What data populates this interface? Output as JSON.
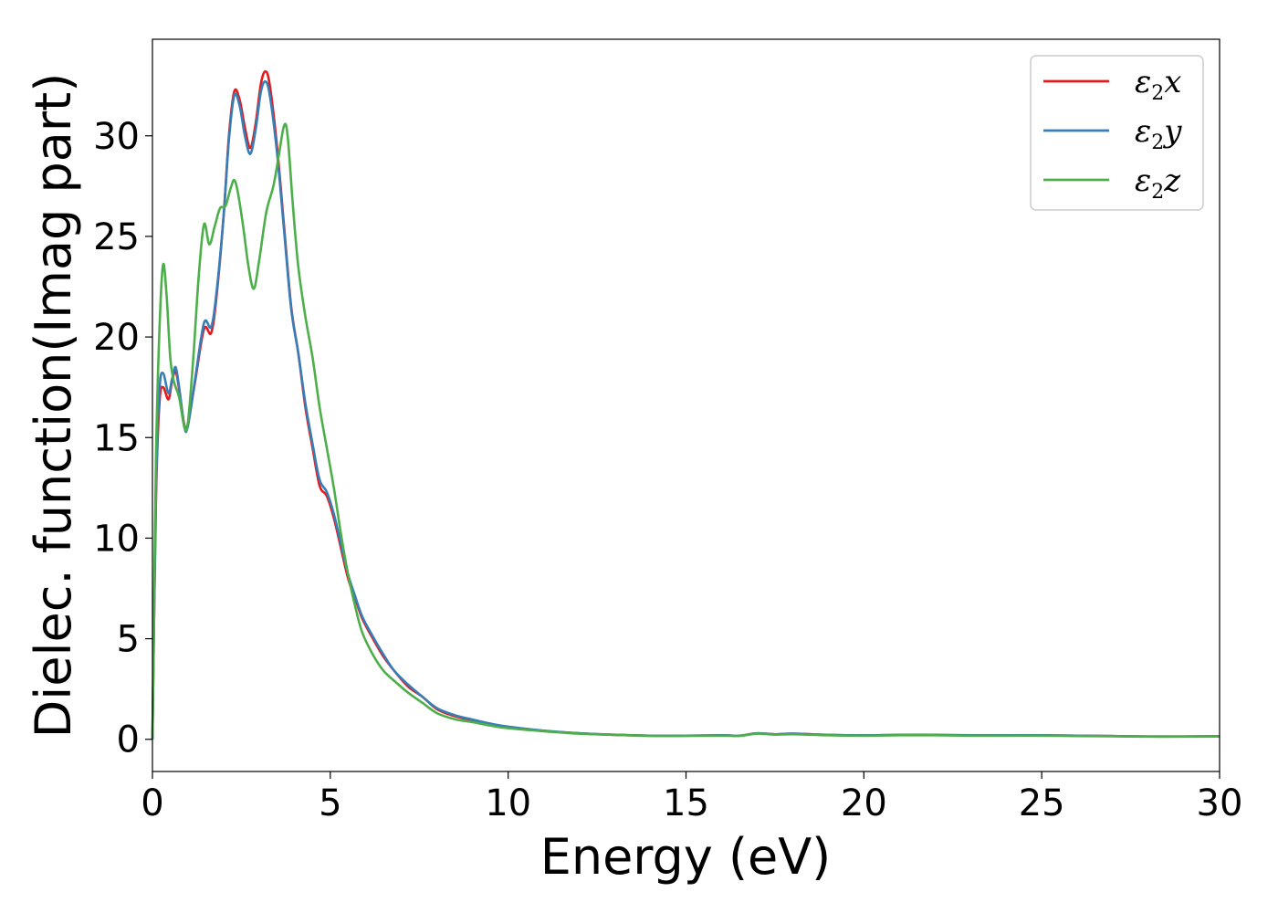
{
  "chart_data": {
    "type": "line",
    "title": "",
    "xlabel": "Energy (eV)",
    "ylabel": "Dielec. function(Imag part)",
    "xlim": [
      0,
      30
    ],
    "ylim": [
      -1.6,
      34.8
    ],
    "x_ticks": [
      "0",
      "5",
      "10",
      "15",
      "20",
      "25",
      "30"
    ],
    "y_ticks": [
      "0",
      "5",
      "10",
      "15",
      "20",
      "25",
      "30"
    ],
    "grid": false,
    "legend_position": "top-right",
    "series": [
      {
        "name": "ε₂x",
        "legend_base": "ε",
        "legend_sub": "2",
        "legend_var": "x",
        "color": "#e41a1c",
        "points": [
          [
            0,
            0
          ],
          [
            0.1,
            12
          ],
          [
            0.2,
            16.8
          ],
          [
            0.3,
            17.5
          ],
          [
            0.45,
            16.9
          ],
          [
            0.55,
            17.8
          ],
          [
            0.65,
            18.3
          ],
          [
            0.75,
            17.4
          ],
          [
            0.9,
            15.6
          ],
          [
            1.0,
            15.7
          ],
          [
            1.2,
            17.8
          ],
          [
            1.45,
            20.4
          ],
          [
            1.65,
            20.2
          ],
          [
            1.8,
            22
          ],
          [
            2.0,
            26
          ],
          [
            2.15,
            30
          ],
          [
            2.3,
            32.2
          ],
          [
            2.45,
            31.8
          ],
          [
            2.6,
            30.4
          ],
          [
            2.75,
            29.4
          ],
          [
            2.9,
            30.6
          ],
          [
            3.05,
            32.6
          ],
          [
            3.18,
            33.2
          ],
          [
            3.3,
            32.5
          ],
          [
            3.5,
            29.5
          ],
          [
            3.7,
            25.5
          ],
          [
            3.9,
            21.5
          ],
          [
            4.1,
            19.2
          ],
          [
            4.3,
            16.5
          ],
          [
            4.5,
            14.5
          ],
          [
            4.7,
            12.6
          ],
          [
            4.9,
            12.1
          ],
          [
            5.1,
            11
          ],
          [
            5.3,
            9.5
          ],
          [
            5.5,
            8
          ],
          [
            5.7,
            7
          ],
          [
            5.9,
            6
          ],
          [
            6.2,
            5
          ],
          [
            6.5,
            4.1
          ],
          [
            6.8,
            3.4
          ],
          [
            7.2,
            2.6
          ],
          [
            7.6,
            2.1
          ],
          [
            8.0,
            1.5
          ],
          [
            8.5,
            1.15
          ],
          [
            9.0,
            0.95
          ],
          [
            9.5,
            0.75
          ],
          [
            10,
            0.62
          ],
          [
            11,
            0.42
          ],
          [
            12,
            0.3
          ],
          [
            13,
            0.22
          ],
          [
            14,
            0.18
          ],
          [
            15,
            0.18
          ],
          [
            16,
            0.2
          ],
          [
            16.5,
            0.18
          ],
          [
            17,
            0.3
          ],
          [
            17.5,
            0.25
          ],
          [
            18,
            0.28
          ],
          [
            19,
            0.22
          ],
          [
            20,
            0.2
          ],
          [
            21,
            0.22
          ],
          [
            22,
            0.22
          ],
          [
            23,
            0.2
          ],
          [
            24,
            0.2
          ],
          [
            25,
            0.2
          ],
          [
            26,
            0.18
          ],
          [
            27,
            0.16
          ],
          [
            28,
            0.14
          ],
          [
            29,
            0.14
          ],
          [
            30,
            0.15
          ]
        ]
      },
      {
        "name": "ε₂y",
        "legend_base": "ε",
        "legend_sub": "2",
        "legend_var": "y",
        "color": "#377eb8",
        "points": [
          [
            0,
            0
          ],
          [
            0.1,
            12.5
          ],
          [
            0.2,
            17.4
          ],
          [
            0.3,
            18.2
          ],
          [
            0.45,
            17.2
          ],
          [
            0.55,
            17.9
          ],
          [
            0.65,
            18.5
          ],
          [
            0.75,
            17.5
          ],
          [
            0.9,
            15.5
          ],
          [
            1.0,
            15.6
          ],
          [
            1.2,
            17.9
          ],
          [
            1.45,
            20.7
          ],
          [
            1.65,
            20.5
          ],
          [
            1.8,
            22.2
          ],
          [
            2.0,
            26
          ],
          [
            2.15,
            29.8
          ],
          [
            2.3,
            32
          ],
          [
            2.45,
            31.5
          ],
          [
            2.6,
            30
          ],
          [
            2.75,
            29.1
          ],
          [
            2.9,
            30.3
          ],
          [
            3.05,
            32.2
          ],
          [
            3.18,
            32.7
          ],
          [
            3.3,
            32
          ],
          [
            3.5,
            29.2
          ],
          [
            3.7,
            25.3
          ],
          [
            3.9,
            21.4
          ],
          [
            4.1,
            19.2
          ],
          [
            4.3,
            16.7
          ],
          [
            4.5,
            14.7
          ],
          [
            4.7,
            12.9
          ],
          [
            4.9,
            12.3
          ],
          [
            5.1,
            11.2
          ],
          [
            5.3,
            9.7
          ],
          [
            5.5,
            8.2
          ],
          [
            5.7,
            7.1
          ],
          [
            5.9,
            6.1
          ],
          [
            6.2,
            5.1
          ],
          [
            6.5,
            4.2
          ],
          [
            6.8,
            3.4
          ],
          [
            7.2,
            2.7
          ],
          [
            7.6,
            2.1
          ],
          [
            8.0,
            1.55
          ],
          [
            8.5,
            1.2
          ],
          [
            9.0,
            0.98
          ],
          [
            9.5,
            0.78
          ],
          [
            10,
            0.63
          ],
          [
            11,
            0.43
          ],
          [
            12,
            0.3
          ],
          [
            13,
            0.23
          ],
          [
            14,
            0.18
          ],
          [
            15,
            0.18
          ],
          [
            16,
            0.2
          ],
          [
            16.5,
            0.18
          ],
          [
            17,
            0.3
          ],
          [
            17.5,
            0.25
          ],
          [
            18,
            0.28
          ],
          [
            19,
            0.22
          ],
          [
            20,
            0.2
          ],
          [
            21,
            0.22
          ],
          [
            22,
            0.22
          ],
          [
            23,
            0.2
          ],
          [
            24,
            0.2
          ],
          [
            25,
            0.2
          ],
          [
            26,
            0.18
          ],
          [
            27,
            0.16
          ],
          [
            28,
            0.14
          ],
          [
            29,
            0.14
          ],
          [
            30,
            0.15
          ]
        ]
      },
      {
        "name": "ε₂z",
        "legend_base": "ε",
        "legend_sub": "2",
        "legend_var": "z",
        "color": "#4daf4a",
        "points": [
          [
            0,
            0
          ],
          [
            0.1,
            14
          ],
          [
            0.2,
            20.5
          ],
          [
            0.3,
            23.6
          ],
          [
            0.4,
            22
          ],
          [
            0.5,
            19
          ],
          [
            0.6,
            17.8
          ],
          [
            0.75,
            17
          ],
          [
            0.9,
            15.5
          ],
          [
            1.0,
            15.8
          ],
          [
            1.15,
            19
          ],
          [
            1.3,
            23
          ],
          [
            1.45,
            25.6
          ],
          [
            1.6,
            24.6
          ],
          [
            1.75,
            25.5
          ],
          [
            1.9,
            26.4
          ],
          [
            2.05,
            26.5
          ],
          [
            2.2,
            27.4
          ],
          [
            2.3,
            27.8
          ],
          [
            2.4,
            27.2
          ],
          [
            2.55,
            25.5
          ],
          [
            2.7,
            23.5
          ],
          [
            2.85,
            22.4
          ],
          [
            3.0,
            23.8
          ],
          [
            3.2,
            26.2
          ],
          [
            3.4,
            27.5
          ],
          [
            3.55,
            29
          ],
          [
            3.7,
            30.5
          ],
          [
            3.8,
            30
          ],
          [
            3.95,
            26.5
          ],
          [
            4.1,
            23.5
          ],
          [
            4.3,
            21
          ],
          [
            4.5,
            19
          ],
          [
            4.7,
            16.5
          ],
          [
            4.9,
            14.5
          ],
          [
            5.1,
            12.5
          ],
          [
            5.3,
            10.2
          ],
          [
            5.5,
            8.2
          ],
          [
            5.7,
            6.6
          ],
          [
            5.9,
            5.3
          ],
          [
            6.2,
            4.2
          ],
          [
            6.5,
            3.4
          ],
          [
            6.8,
            2.9
          ],
          [
            7.2,
            2.3
          ],
          [
            7.6,
            1.8
          ],
          [
            8.0,
            1.3
          ],
          [
            8.5,
            1.0
          ],
          [
            9.0,
            0.85
          ],
          [
            9.5,
            0.68
          ],
          [
            10,
            0.55
          ],
          [
            11,
            0.4
          ],
          [
            12,
            0.28
          ],
          [
            13,
            0.22
          ],
          [
            14,
            0.17
          ],
          [
            15,
            0.17
          ],
          [
            16,
            0.18
          ],
          [
            16.5,
            0.17
          ],
          [
            17,
            0.28
          ],
          [
            17.5,
            0.23
          ],
          [
            18,
            0.25
          ],
          [
            19,
            0.2
          ],
          [
            20,
            0.18
          ],
          [
            21,
            0.2
          ],
          [
            22,
            0.2
          ],
          [
            23,
            0.18
          ],
          [
            24,
            0.18
          ],
          [
            25,
            0.18
          ],
          [
            26,
            0.16
          ],
          [
            27,
            0.15
          ],
          [
            28,
            0.13
          ],
          [
            29,
            0.13
          ],
          [
            30,
            0.14
          ]
        ]
      }
    ]
  }
}
